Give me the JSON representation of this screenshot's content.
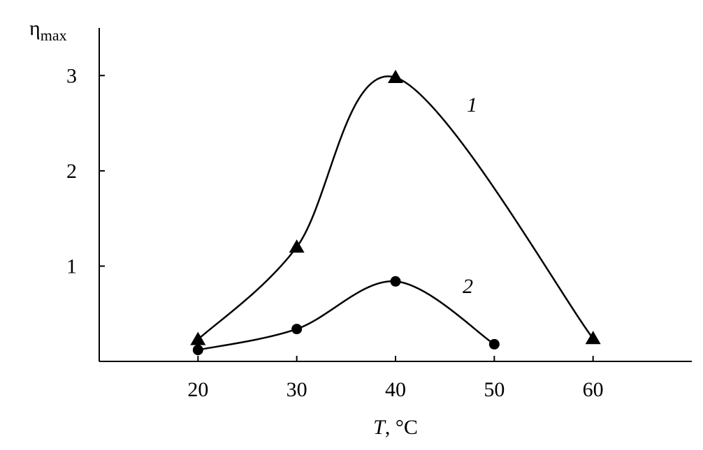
{
  "chart_data": {
    "type": "line",
    "y_label": "η",
    "y_label_subscript": "max",
    "x_label_symbol": "T",
    "x_label_unit": ", °C",
    "x": [
      20,
      30,
      40,
      50,
      60
    ],
    "series": [
      {
        "name": "1",
        "color": "#000000",
        "marker": "triangle",
        "x": [
          20,
          30,
          40,
          60
        ],
        "values": [
          0.23,
          1.2,
          2.98,
          0.24
        ]
      },
      {
        "name": "2",
        "color": "#000000",
        "marker": "circle",
        "x": [
          20,
          30,
          40,
          50
        ],
        "values": [
          0.12,
          0.34,
          0.84,
          0.18
        ]
      }
    ],
    "xlim": [
      10,
      70
    ],
    "xticks": [
      20,
      30,
      40,
      50,
      60
    ],
    "ylim": [
      0,
      3.5
    ],
    "yticks": [
      1,
      2,
      3
    ],
    "grid": false
  }
}
